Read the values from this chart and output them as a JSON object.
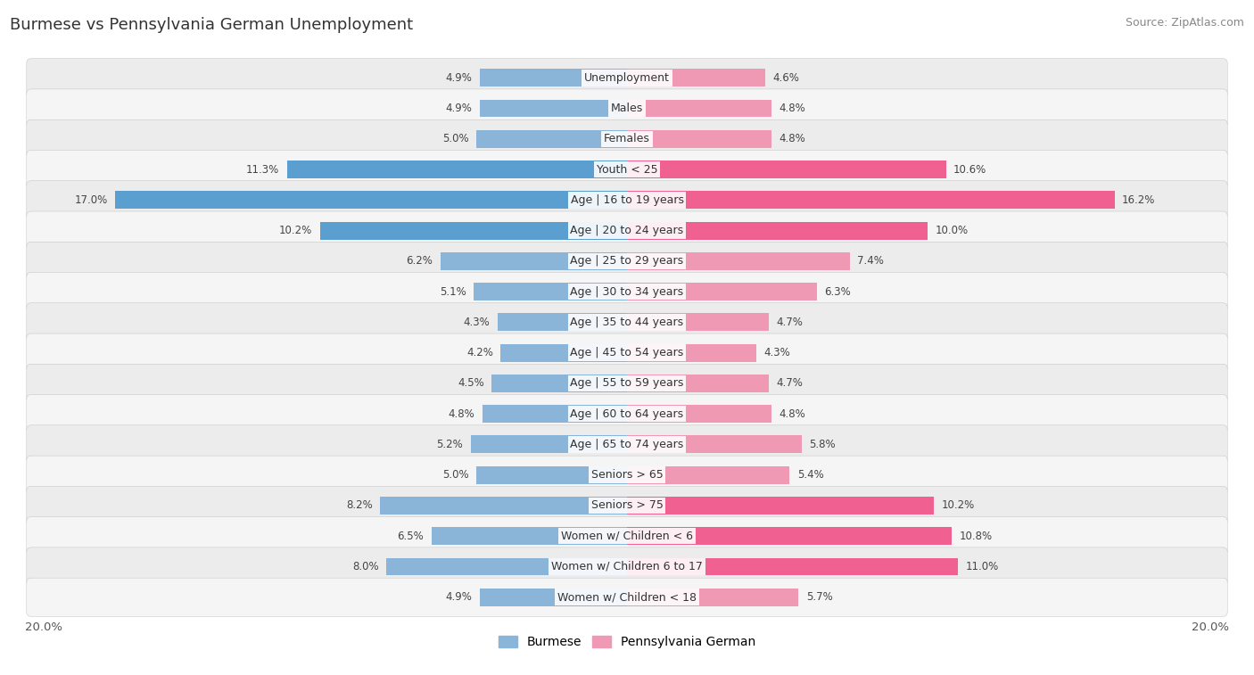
{
  "title": "Burmese vs Pennsylvania German Unemployment",
  "source": "Source: ZipAtlas.com",
  "categories": [
    "Unemployment",
    "Males",
    "Females",
    "Youth < 25",
    "Age | 16 to 19 years",
    "Age | 20 to 24 years",
    "Age | 25 to 29 years",
    "Age | 30 to 34 years",
    "Age | 35 to 44 years",
    "Age | 45 to 54 years",
    "Age | 55 to 59 years",
    "Age | 60 to 64 years",
    "Age | 65 to 74 years",
    "Seniors > 65",
    "Seniors > 75",
    "Women w/ Children < 6",
    "Women w/ Children 6 to 17",
    "Women w/ Children < 18"
  ],
  "burmese": [
    4.9,
    4.9,
    5.0,
    11.3,
    17.0,
    10.2,
    6.2,
    5.1,
    4.3,
    4.2,
    4.5,
    4.8,
    5.2,
    5.0,
    8.2,
    6.5,
    8.0,
    4.9
  ],
  "penn_german": [
    4.6,
    4.8,
    4.8,
    10.6,
    16.2,
    10.0,
    7.4,
    6.3,
    4.7,
    4.3,
    4.7,
    4.8,
    5.8,
    5.4,
    10.2,
    10.8,
    11.0,
    5.7
  ],
  "burmese_color": "#8ab4d8",
  "penn_german_color": "#f099b5",
  "burmese_highlight": "#5b9fd0",
  "penn_highlight": "#f06090",
  "max_val": 20.0,
  "bar_height": 0.58,
  "row_bg_even": "#ececec",
  "row_bg_odd": "#f5f5f5",
  "legend_burmese": "Burmese",
  "legend_penn_german": "Pennsylvania German",
  "title_fontsize": 13,
  "source_fontsize": 9,
  "category_fontsize": 9,
  "value_fontsize": 8.5,
  "legend_fontsize": 10
}
